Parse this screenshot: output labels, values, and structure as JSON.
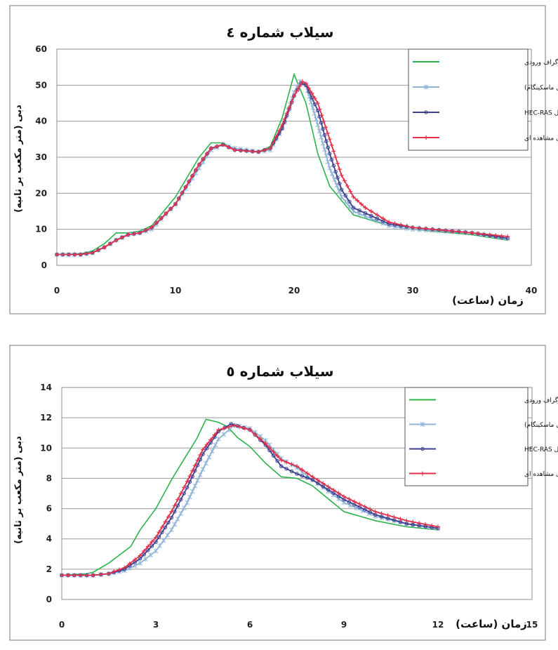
{
  "chart_data": [
    {
      "type": "line",
      "title": "سیلاب شماره ٤",
      "xlabel": "زمان (ساعت)",
      "ylabel": "دبی (متر مکعب بر ثانیه)",
      "xlim": [
        0,
        40
      ],
      "ylim": [
        0,
        60
      ],
      "xticks": [
        "0",
        "10",
        "20",
        "30",
        "40"
      ],
      "yticks": [
        "0",
        "10",
        "20",
        "30",
        "40",
        "50",
        "60"
      ],
      "grid": true,
      "legend_position": "top-right",
      "colors": [
        "#2bb34a",
        "#8fb4d6",
        "#3b3f8f",
        "#e0304a"
      ],
      "series": [
        {
          "name": "هیدروگراف ورودی",
          "marker": "none",
          "points": [
            [
              0,
              3
            ],
            [
              2,
              3.2
            ],
            [
              3,
              4
            ],
            [
              4,
              6
            ],
            [
              5,
              9
            ],
            [
              6,
              9
            ],
            [
              7,
              9.5
            ],
            [
              8,
              11
            ],
            [
              10,
              19
            ],
            [
              12,
              30
            ],
            [
              13,
              34
            ],
            [
              14,
              34
            ],
            [
              15,
              32
            ],
            [
              17,
              31.5
            ],
            [
              18,
              33
            ],
            [
              19,
              41
            ],
            [
              20,
              53
            ],
            [
              21,
              45
            ],
            [
              22,
              31
            ],
            [
              23,
              22
            ],
            [
              24,
              18
            ],
            [
              25,
              14
            ],
            [
              28,
              11
            ],
            [
              30,
              10
            ],
            [
              35,
              8.5
            ],
            [
              38,
              7
            ]
          ]
        },
        {
          "name": "هیدروگراف خروجی (مدل ماسکینگام)",
          "marker": "star",
          "points": [
            [
              0,
              3
            ],
            [
              2,
              3
            ],
            [
              3,
              3.5
            ],
            [
              4,
              5
            ],
            [
              5,
              7
            ],
            [
              6,
              8.5
            ],
            [
              7,
              9
            ],
            [
              8,
              10
            ],
            [
              10,
              17
            ],
            [
              12,
              27
            ],
            [
              13,
              32
            ],
            [
              14,
              33.5
            ],
            [
              15,
              32.5
            ],
            [
              17,
              31.5
            ],
            [
              18,
              32
            ],
            [
              19,
              38
            ],
            [
              20,
              48
            ],
            [
              20.5,
              51
            ],
            [
              21,
              50
            ],
            [
              22,
              39
            ],
            [
              23,
              27
            ],
            [
              24,
              19
            ],
            [
              25,
              15
            ],
            [
              28,
              11
            ],
            [
              30,
              10
            ],
            [
              35,
              9
            ],
            [
              38,
              7.5
            ]
          ]
        },
        {
          "name": "هیدروگراف خروجی مدل HEC-RAS",
          "marker": "circle",
          "points": [
            [
              0,
              3
            ],
            [
              2,
              3
            ],
            [
              3,
              3.5
            ],
            [
              4,
              5
            ],
            [
              5,
              7
            ],
            [
              6,
              8.5
            ],
            [
              7,
              9
            ],
            [
              8,
              10.5
            ],
            [
              10,
              17
            ],
            [
              12,
              28
            ],
            [
              13,
              32.5
            ],
            [
              14,
              33.5
            ],
            [
              15,
              32
            ],
            [
              17,
              31.5
            ],
            [
              18,
              32.5
            ],
            [
              19,
              38
            ],
            [
              20,
              47
            ],
            [
              20.6,
              50.5
            ],
            [
              21,
              50
            ],
            [
              22,
              43
            ],
            [
              23,
              31
            ],
            [
              24,
              21
            ],
            [
              25,
              16
            ],
            [
              28,
              11.5
            ],
            [
              30,
              10.5
            ],
            [
              35,
              9
            ],
            [
              38,
              7.5
            ]
          ]
        },
        {
          "name": "هیدروگراف خروجی مشاهده ای",
          "marker": "plus",
          "points": [
            [
              0,
              3
            ],
            [
              2,
              3
            ],
            [
              3,
              3.5
            ],
            [
              4,
              5
            ],
            [
              5,
              7
            ],
            [
              6,
              8.5
            ],
            [
              7,
              9
            ],
            [
              8,
              10.5
            ],
            [
              10,
              17
            ],
            [
              12,
              28
            ],
            [
              13,
              32.5
            ],
            [
              14,
              33.5
            ],
            [
              15,
              32
            ],
            [
              17,
              31.5
            ],
            [
              18,
              32.5
            ],
            [
              19,
              39
            ],
            [
              20,
              47
            ],
            [
              20.7,
              51
            ],
            [
              21,
              50.5
            ],
            [
              22,
              45
            ],
            [
              23,
              35
            ],
            [
              24,
              25
            ],
            [
              25,
              19
            ],
            [
              26,
              16
            ],
            [
              28,
              12
            ],
            [
              30,
              10.5
            ],
            [
              35,
              9
            ],
            [
              38,
              8
            ]
          ]
        }
      ]
    },
    {
      "type": "line",
      "title": "سیلاب شماره ٥",
      "xlabel": "زمان (ساعت)",
      "ylabel": "دبی (متر مکعب بر ثانیه)",
      "xlim": [
        0,
        15
      ],
      "ylim": [
        0,
        14
      ],
      "xticks": [
        "0",
        "3",
        "6",
        "9",
        "12",
        "15"
      ],
      "yticks": [
        "0",
        "2",
        "4",
        "6",
        "8",
        "10",
        "12",
        "14"
      ],
      "grid": true,
      "legend_position": "top-right",
      "colors": [
        "#2bb34a",
        "#8fb4d6",
        "#3b3f8f",
        "#e0304a"
      ],
      "series": [
        {
          "name": "هیدروگراف ورودی",
          "marker": "none",
          "points": [
            [
              0,
              1.6
            ],
            [
              0.8,
              1.7
            ],
            [
              1,
              1.8
            ],
            [
              1.5,
              2.4
            ],
            [
              2.2,
              3.5
            ],
            [
              2.5,
              4.6
            ],
            [
              3,
              6
            ],
            [
              3.5,
              7.9
            ],
            [
              4,
              9.6
            ],
            [
              4.3,
              10.6
            ],
            [
              4.6,
              11.9
            ],
            [
              5,
              11.7
            ],
            [
              5.3,
              11.4
            ],
            [
              5.6,
              10.7
            ],
            [
              6,
              10.1
            ],
            [
              6.5,
              9
            ],
            [
              7,
              8.1
            ],
            [
              7.5,
              8
            ],
            [
              8,
              7.5
            ],
            [
              9,
              5.8
            ],
            [
              10,
              5.2
            ],
            [
              11,
              4.8
            ],
            [
              12,
              4.6
            ]
          ]
        },
        {
          "name": "هیدروگراف خروجی (مدل ماسکینگام)",
          "marker": "star",
          "points": [
            [
              0,
              1.6
            ],
            [
              1,
              1.6
            ],
            [
              1.5,
              1.7
            ],
            [
              2,
              1.9
            ],
            [
              2.5,
              2.4
            ],
            [
              3,
              3.2
            ],
            [
              3.5,
              4.6
            ],
            [
              4,
              6.4
            ],
            [
              4.5,
              8.6
            ],
            [
              5,
              10.6
            ],
            [
              5.5,
              11.5
            ],
            [
              6,
              11.3
            ],
            [
              6.5,
              10.5
            ],
            [
              7,
              9.3
            ],
            [
              7.5,
              8.7
            ],
            [
              8,
              7.9
            ],
            [
              9,
              6.4
            ],
            [
              10,
              5.5
            ],
            [
              11,
              5
            ],
            [
              12,
              4.7
            ]
          ]
        },
        {
          "name": "هیدروگراف خروجی مدل HEC-RAS",
          "marker": "circle",
          "points": [
            [
              0,
              1.6
            ],
            [
              1,
              1.6
            ],
            [
              1.5,
              1.7
            ],
            [
              2,
              2
            ],
            [
              2.5,
              2.7
            ],
            [
              3,
              3.8
            ],
            [
              3.5,
              5.4
            ],
            [
              4,
              7.4
            ],
            [
              4.5,
              9.6
            ],
            [
              5,
              11.1
            ],
            [
              5.4,
              11.6
            ],
            [
              6,
              11.2
            ],
            [
              6.5,
              10.2
            ],
            [
              7,
              8.8
            ],
            [
              7.5,
              8.3
            ],
            [
              8,
              7.9
            ],
            [
              9,
              6.6
            ],
            [
              10,
              5.6
            ],
            [
              11,
              5
            ],
            [
              12,
              4.7
            ]
          ]
        },
        {
          "name": "هیدروگراف خروجی مشاهده ای",
          "marker": "plus",
          "points": [
            [
              0,
              1.6
            ],
            [
              1,
              1.6
            ],
            [
              1.5,
              1.7
            ],
            [
              2,
              2.1
            ],
            [
              2.5,
              2.9
            ],
            [
              3,
              4.1
            ],
            [
              3.5,
              5.8
            ],
            [
              4,
              7.8
            ],
            [
              4.5,
              9.9
            ],
            [
              5,
              11.2
            ],
            [
              5.5,
              11.5
            ],
            [
              6,
              11.2
            ],
            [
              6.5,
              10.3
            ],
            [
              7,
              9.2
            ],
            [
              7.5,
              8.8
            ],
            [
              8,
              8.1
            ],
            [
              9,
              6.8
            ],
            [
              10,
              5.8
            ],
            [
              11,
              5.2
            ],
            [
              12,
              4.8
            ]
          ]
        }
      ]
    }
  ]
}
